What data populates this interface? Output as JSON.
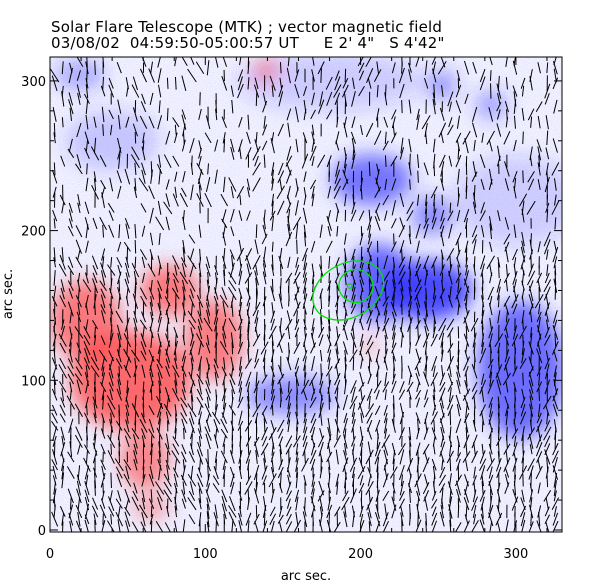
{
  "chart_data": {
    "type": "heatmap",
    "title": "Solar Flare Telescope (MTK) ; vector magnetic field",
    "subtitle": "03/08/02  04:59:50-05:00:57 UT     E 2' 4\"   S 4'42\"",
    "xlabel": "arc sec.",
    "ylabel": "arc sec.",
    "xlim": [
      0,
      330
    ],
    "ylim": [
      0,
      316
    ],
    "xticks": [
      "0",
      "100",
      "200",
      "300"
    ],
    "xtick_values": [
      0,
      100,
      200,
      300
    ],
    "yticks": [
      "0",
      "100",
      "200",
      "300"
    ],
    "ytick_values": [
      0,
      100,
      200,
      300
    ],
    "colors": {
      "positive": "#ff4040",
      "negative": "#3030ff",
      "contour": "#00e000",
      "vector": "#000000"
    },
    "negative_regions": [
      {
        "x": 252,
        "y": 297,
        "rx": 10,
        "ry": 10,
        "strength": 0.5
      },
      {
        "x": 207,
        "y": 234,
        "rx": 26,
        "ry": 17,
        "strength": 0.75
      },
      {
        "x": 246,
        "y": 210,
        "rx": 13,
        "ry": 13,
        "strength": 0.6
      },
      {
        "x": 243,
        "y": 160,
        "rx": 29,
        "ry": 20,
        "strength": 1.0
      },
      {
        "x": 212,
        "y": 165,
        "rx": 22,
        "ry": 26,
        "strength": 0.85
      },
      {
        "x": 303,
        "y": 107,
        "rx": 28,
        "ry": 46,
        "strength": 0.8
      },
      {
        "x": 155,
        "y": 90,
        "rx": 29,
        "ry": 13,
        "strength": 0.6
      },
      {
        "x": 284,
        "y": 284,
        "rx": 10,
        "ry": 10,
        "strength": 0.45
      },
      {
        "x": 19,
        "y": 304,
        "rx": 16,
        "ry": 10,
        "strength": 0.4
      },
      {
        "x": 40,
        "y": 260,
        "rx": 30,
        "ry": 20,
        "strength": 0.25
      },
      {
        "x": 180,
        "y": 300,
        "rx": 60,
        "ry": 20,
        "strength": 0.2
      },
      {
        "x": 300,
        "y": 220,
        "rx": 40,
        "ry": 30,
        "strength": 0.2
      }
    ],
    "positive_regions": [
      {
        "x": 23,
        "y": 140,
        "rx": 23,
        "ry": 27,
        "strength": 0.8
      },
      {
        "x": 77,
        "y": 160,
        "rx": 19,
        "ry": 17,
        "strength": 0.8
      },
      {
        "x": 52,
        "y": 100,
        "rx": 39,
        "ry": 33,
        "strength": 0.9
      },
      {
        "x": 106,
        "y": 127,
        "rx": 19,
        "ry": 27,
        "strength": 0.75
      },
      {
        "x": 61,
        "y": 47,
        "rx": 16,
        "ry": 20,
        "strength": 0.7
      },
      {
        "x": 139,
        "y": 307,
        "rx": 8,
        "ry": 8,
        "strength": 0.6
      },
      {
        "x": 206,
        "y": 123,
        "rx": 4,
        "ry": 7,
        "strength": 0.5
      },
      {
        "x": 65,
        "y": 15,
        "rx": 12,
        "ry": 8,
        "strength": 0.5
      }
    ],
    "contours": [
      {
        "x": 192,
        "y": 160,
        "rx": 24,
        "ry": 18,
        "angle": -28
      },
      {
        "x": 197,
        "y": 163,
        "rx": 11,
        "ry": 11,
        "angle": 0
      },
      {
        "x": 193,
        "y": 163,
        "rx": 1.5,
        "ry": 1.5,
        "angle": 0
      }
    ],
    "vector_grid_spacing": 5.2
  }
}
